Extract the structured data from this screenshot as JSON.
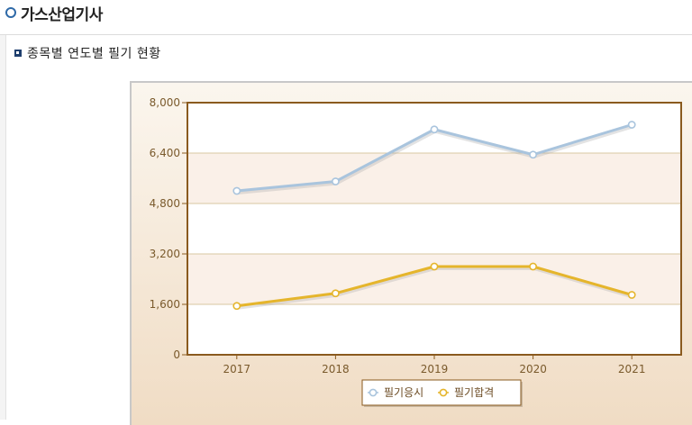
{
  "page": {
    "title": "가스산업기사"
  },
  "section": {
    "title": "종목별 연도별 필기 현황"
  },
  "chart_data": {
    "type": "line",
    "title": "",
    "xlabel": "",
    "ylabel": "",
    "categories": [
      "2017",
      "2018",
      "2019",
      "2020",
      "2021"
    ],
    "ylim": [
      0,
      8000
    ],
    "yticks": [
      0,
      1600,
      3200,
      4800,
      6400,
      8000
    ],
    "ytick_labels": [
      "0",
      "1,600",
      "3,200",
      "4,800",
      "6,400",
      "8,000"
    ],
    "grid": true,
    "legend_position": "bottom",
    "series": [
      {
        "name": "필기응시",
        "values": [
          5200,
          5500,
          7150,
          6350,
          7300
        ],
        "color": "#a9c4dd"
      },
      {
        "name": "필기합격",
        "values": [
          1550,
          1950,
          2800,
          2800,
          1900
        ],
        "color": "#e5b52c"
      }
    ]
  }
}
